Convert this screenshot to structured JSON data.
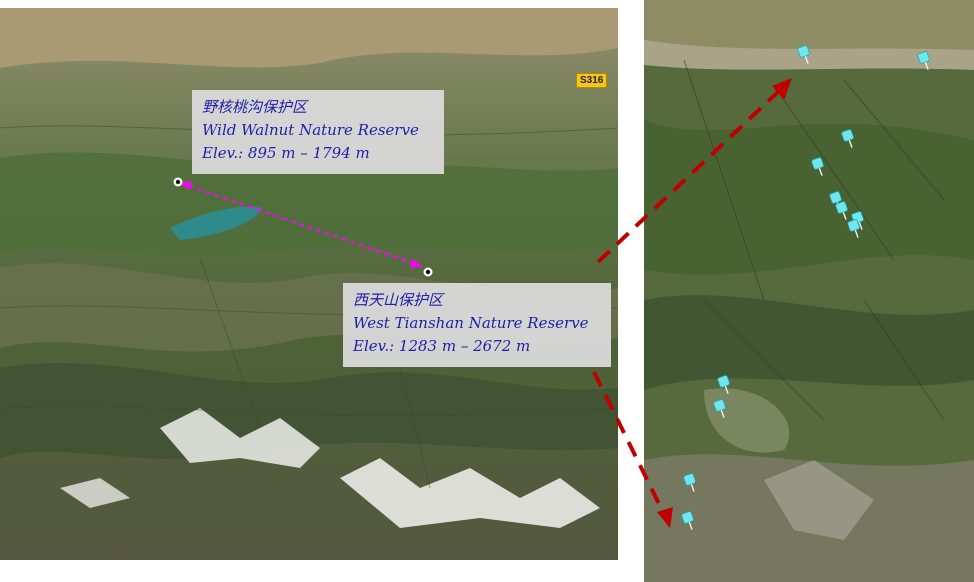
{
  "left_map": {
    "reserve_walnut": {
      "name_cn": "野核桃沟保护区",
      "name_en": "Wild Walnut Nature Reserve",
      "elevation": "Elev.: 895 m – 1794 m"
    },
    "reserve_tianshan": {
      "name_cn": "西天山保护区",
      "name_en": "West Tianshan Nature Reserve",
      "elevation": "Elev.: 1283 m – 2672 m"
    },
    "road_label": "S316"
  },
  "right_map": {
    "pin_count": 12
  },
  "colors": {
    "label_text": "#1c1cae",
    "connector_arrow": "#ff00ff",
    "zoom_arrow": "#c00000",
    "pin": "#6fe6f0",
    "label_bg": "#d9d9d9"
  },
  "icons": [
    "location-marker-icon",
    "map-pin-icon",
    "road-shield-icon"
  ]
}
